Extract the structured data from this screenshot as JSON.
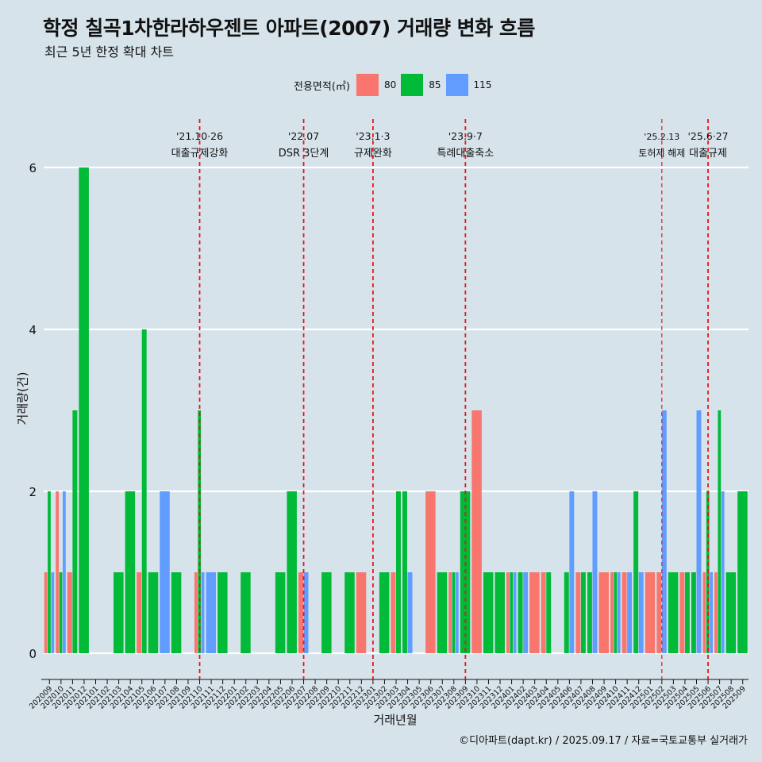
{
  "title": "학정 칠곡1차한라하우젠트 아파트(2007) 거래량 변화 흐름",
  "subtitle": "최근 5년 한정 확대 차트",
  "caption": "©디아파트(dapt.kr) / 2025.09.17 / 자료=국토교통부 실거래가",
  "colors": {
    "background": "#d6e3ea",
    "80": "#f8766d",
    "85": "#00ba38",
    "115": "#619cff",
    "event_line": "#e8161b"
  },
  "chart_data": {
    "type": "bar",
    "title": "학정 칠곡1차한라하우젠트 아파트(2007) 거래량 변화 흐름",
    "subtitle": "최근 5년 한정 확대 차트",
    "xlabel": "거래년월",
    "ylabel": "거래량(건)",
    "ylim": [
      -0.25,
      6.4
    ],
    "yticks": [
      0,
      2,
      4,
      6
    ],
    "grid": "horizontal major",
    "legend": {
      "title": "전용면적(㎡)",
      "position": "top",
      "entries": [
        "80",
        "85",
        "115"
      ]
    },
    "categories": [
      "202009",
      "202010",
      "202011",
      "202012",
      "202101",
      "202102",
      "202103",
      "202104",
      "202105",
      "202106",
      "202107",
      "202108",
      "202109",
      "202110",
      "202111",
      "202112",
      "202201",
      "202202",
      "202203",
      "202204",
      "202205",
      "202206",
      "202207",
      "202208",
      "202209",
      "202210",
      "202211",
      "202212",
      "202301",
      "202302",
      "202303",
      "202304",
      "202305",
      "202306",
      "202307",
      "202308",
      "202309",
      "202310",
      "202311",
      "202312",
      "202401",
      "202402",
      "202403",
      "202404",
      "202405",
      "202406",
      "202407",
      "202408",
      "202409",
      "202410",
      "202411",
      "202412",
      "202501",
      "202502",
      "202503",
      "202504",
      "202505",
      "202506",
      "202507",
      "202508",
      "202509"
    ],
    "series": [
      {
        "name": "80",
        "values": [
          1,
          2,
          1,
          0,
          0,
          0,
          0,
          0,
          1,
          0,
          0,
          0,
          0,
          1,
          0,
          0,
          0,
          0,
          0,
          0,
          0,
          0,
          1,
          0,
          0,
          0,
          0,
          1,
          0,
          0,
          1,
          0,
          0,
          2,
          0,
          1,
          0,
          3,
          0,
          0,
          1,
          0,
          1,
          1,
          0,
          0,
          1,
          0,
          1,
          1,
          1,
          0,
          1,
          1,
          0,
          1,
          0,
          1,
          1,
          0,
          0
        ]
      },
      {
        "name": "85",
        "values": [
          2,
          1,
          3,
          6,
          0,
          0,
          1,
          2,
          4,
          1,
          0,
          1,
          0,
          3,
          0,
          1,
          0,
          1,
          0,
          0,
          1,
          2,
          0,
          0,
          1,
          0,
          1,
          0,
          0,
          1,
          2,
          2,
          0,
          0,
          1,
          1,
          2,
          0,
          1,
          1,
          1,
          1,
          0,
          1,
          0,
          1,
          1,
          1,
          0,
          1,
          0,
          2,
          0,
          0,
          1,
          1,
          1,
          2,
          3,
          1,
          2
        ]
      },
      {
        "name": "115",
        "values": [
          1,
          2,
          0,
          0,
          0,
          0,
          0,
          0,
          0,
          0,
          2,
          0,
          0,
          1,
          1,
          0,
          0,
          0,
          0,
          0,
          0,
          0,
          1,
          0,
          0,
          0,
          0,
          0,
          0,
          0,
          0,
          1,
          0,
          0,
          0,
          1,
          0,
          0,
          0,
          0,
          1,
          1,
          0,
          0,
          0,
          2,
          0,
          2,
          0,
          1,
          1,
          1,
          0,
          3,
          0,
          0,
          3,
          1,
          2,
          0,
          0
        ]
      }
    ],
    "annotations": [
      {
        "date": "'21.10·26",
        "label": "대출규제강화",
        "at": "202110"
      },
      {
        "date": "'22.07",
        "label": "DSR 3단계",
        "at": "202207"
      },
      {
        "date": "'23.1·3",
        "label": "규제완화",
        "at": "202301"
      },
      {
        "date": "'23.9·7",
        "label": "특례대출축소",
        "at": "202309"
      },
      {
        "date": "'25.2.13",
        "label": "토허제 해제",
        "at": "202502"
      },
      {
        "date": "'25.6·27",
        "label": "대출규제",
        "at": "202506"
      }
    ]
  }
}
